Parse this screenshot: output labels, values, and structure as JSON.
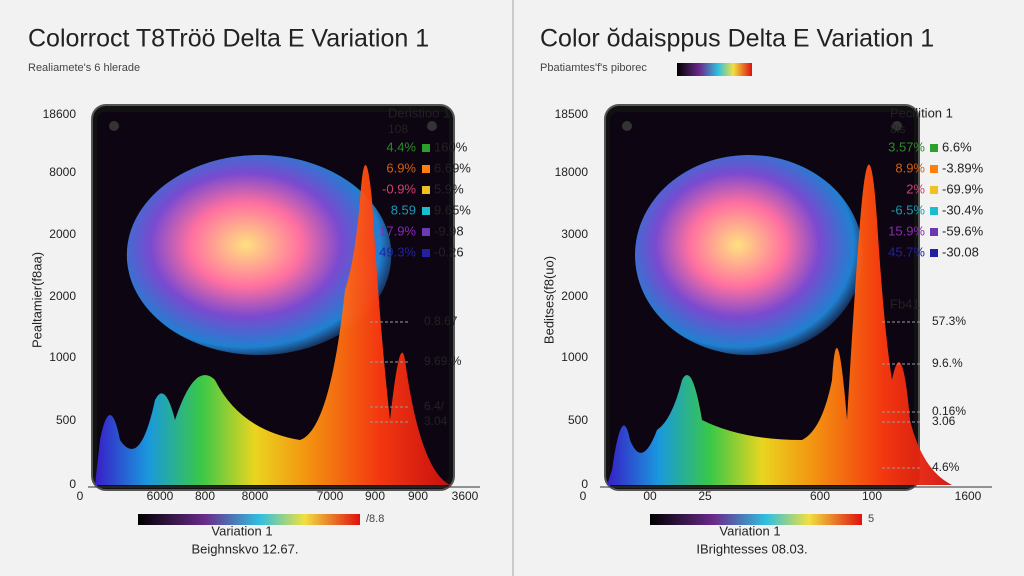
{
  "panels": [
    {
      "title": "Colorroct T8Tröö Delta E   Variation 1",
      "subtitle": "Realiamete's 6 hlerade",
      "y_axis_label": "Pealtamier(f8aa)",
      "y_ticks": [
        "18600",
        "8000",
        "2000",
        "2000",
        "1000",
        "500",
        "0"
      ],
      "x_ticks": [
        "0",
        "6000",
        "800",
        "8000",
        "7000",
        "900",
        "900",
        "3600"
      ],
      "legend_title": "Deristioo 1",
      "legend_subtitle": "108",
      "legend_rows": [
        [
          "4.4%",
          "160%"
        ],
        [
          "6.9%",
          "6.69%"
        ],
        [
          "-0.9%",
          "5.9%"
        ],
        [
          "8.59",
          "9.65%"
        ],
        [
          "17.9%",
          "-9.98"
        ],
        [
          "49.3%",
          "-0.26"
        ]
      ],
      "callouts": [
        "0.8.67",
        "9.69.%",
        "6.4/",
        "3.04"
      ],
      "colorbar_end": "/8.8",
      "colorbar_label": "Variation 1",
      "footer": "Beighnskvo 12.67."
    },
    {
      "title": "Color ŏdaisppus  Delta E   Variation 1",
      "subtitle": "Pbatiamtes'f's piborec",
      "y_axis_label": "Beditses(f8(uo)",
      "y_ticks": [
        "18500",
        "18000",
        "3000",
        "2000",
        "1000",
        "500",
        "0"
      ],
      "x_ticks": [
        "0",
        "00",
        "25",
        "600",
        "100",
        "1600"
      ],
      "legend_title": "Pecilition 1",
      "legend_subtitle": "8is",
      "legend_rows": [
        [
          "3.57%",
          "6.6%"
        ],
        [
          "8.9%",
          "-3.89%"
        ],
        [
          "2%",
          "-69.9%"
        ],
        [
          "-6.5%",
          "-30.4%"
        ],
        [
          "15.9%",
          "-59.6%"
        ],
        [
          "45.7%",
          "-30.08"
        ]
      ],
      "callout_title": "Fb41",
      "callouts": [
        "57.3%",
        "9.6.%",
        "0.16%",
        "3.06",
        "4.6%"
      ],
      "colorbar_end": "5",
      "colorbar_label": "Variation 1",
      "footer": "IBrightesses 08.03."
    }
  ]
}
